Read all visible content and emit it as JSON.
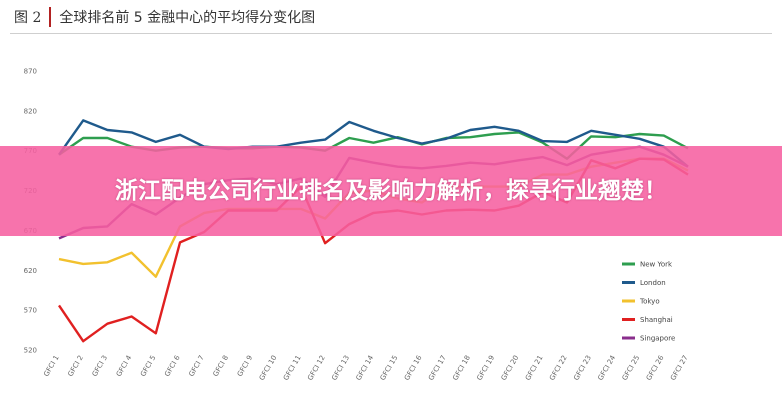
{
  "figure": {
    "label": "图 2",
    "title": "全球排名前 5 金融中心的平均得分变化图"
  },
  "banner": {
    "text": "浙江配电公司行业排名及影响力解析，探寻行业翘楚！"
  },
  "chart_data": {
    "type": "line",
    "categories": [
      "GFCI 1",
      "GFCI 2",
      "GFCI 3",
      "GFCI 4",
      "GFCI 5",
      "GFCI 6",
      "GFCI 7",
      "GFCI 8",
      "GFCI 9",
      "GFCI 10",
      "GFCI 11",
      "GFCI 12",
      "GFCI 13",
      "GFCI 14",
      "GFCI 15",
      "GFCI 16",
      "GFCI 17",
      "GFCI 18",
      "GFCI 19",
      "GFCI 20",
      "GFCI 21",
      "GFCI 22",
      "GFCI 23",
      "GFCI 24",
      "GFCI 25",
      "GFCI 26",
      "GFCI 27"
    ],
    "ylim": [
      520,
      870
    ],
    "yticks": [
      520,
      570,
      620,
      670,
      720,
      770,
      820,
      870
    ],
    "legend_position": "bottom-right",
    "series": [
      {
        "name": "New York",
        "color": "#2e9e4f",
        "values": [
          765,
          786,
          786,
          775,
          770,
          774,
          775,
          773,
          773,
          775,
          774,
          770,
          786,
          780,
          787,
          778,
          786,
          787,
          791,
          793,
          780,
          760,
          788,
          787,
          791,
          789,
          773
        ]
      },
      {
        "name": "London",
        "color": "#1f5a8c",
        "values": [
          765,
          808,
          796,
          793,
          781,
          790,
          775,
          772,
          775,
          775,
          780,
          784,
          806,
          795,
          786,
          779,
          785,
          796,
          800,
          795,
          782,
          781,
          795,
          790,
          785,
          775,
          750
        ]
      },
      {
        "name": "Tokyo",
        "color": "#f2c12e",
        "values": [
          634,
          628,
          630,
          642,
          612,
          675,
          692,
          697,
          697,
          697,
          697,
          685,
          717,
          720,
          710,
          705,
          725,
          725,
          725,
          725,
          740,
          740,
          750,
          755,
          760,
          760,
          745
        ]
      },
      {
        "name": "Shanghai",
        "color": "#e02020",
        "values": [
          576,
          531,
          553,
          562,
          541,
          655,
          668,
          695,
          695,
          695,
          725,
          654,
          678,
          692,
          695,
          690,
          695,
          696,
          695,
          701,
          718,
          705,
          758,
          748,
          760,
          759,
          740
        ]
      },
      {
        "name": "Singapore",
        "color": "#8a2e8c",
        "values": [
          660,
          673,
          675,
          703,
          690,
          711,
          728,
          733,
          735,
          728,
          735,
          712,
          761,
          755,
          750,
          748,
          751,
          755,
          753,
          758,
          762,
          752,
          765,
          770,
          775,
          765,
          750
        ]
      }
    ]
  }
}
